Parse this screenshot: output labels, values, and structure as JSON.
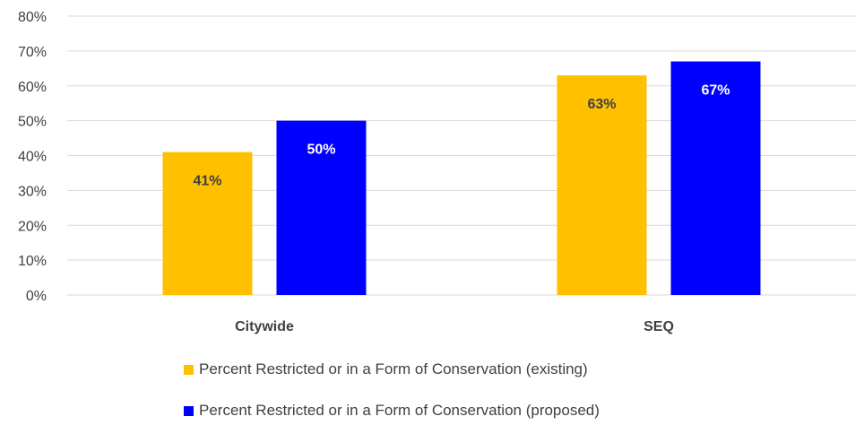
{
  "chart_data": {
    "type": "bar",
    "categories": [
      "Citywide",
      "SEQ"
    ],
    "series": [
      {
        "name": "Percent Restricted or in a Form of Conservation (existing)",
        "values": [
          41,
          63
        ],
        "color": "#FFC000",
        "label_color": "#404040"
      },
      {
        "name": "Percent Restricted or in a Form of Conservation (proposed)",
        "values": [
          50,
          67
        ],
        "color": "#0000FF",
        "label_color": "#FFFFFF"
      }
    ],
    "data_labels": [
      [
        "41%",
        "63%"
      ],
      [
        "50%",
        "67%"
      ]
    ],
    "yticks": [
      "0%",
      "10%",
      "20%",
      "30%",
      "40%",
      "50%",
      "60%",
      "70%",
      "80%"
    ],
    "ylim": [
      0,
      80
    ],
    "grid": true,
    "legend_position": "bottom",
    "title": "",
    "xlabel": "",
    "ylabel": ""
  }
}
